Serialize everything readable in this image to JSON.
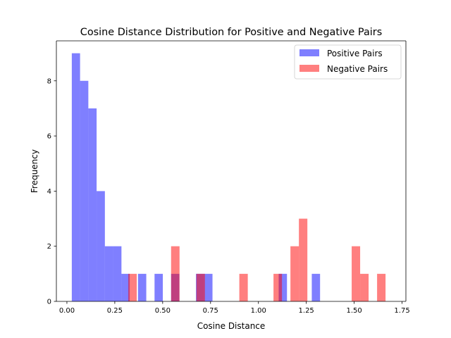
{
  "chart_data": {
    "type": "histogram",
    "title": "Cosine Distance Distribution for Positive and Negative Pairs",
    "xlabel": "Cosine Distance",
    "ylabel": "Frequency",
    "xlim": [
      -0.055,
      1.77
    ],
    "ylim": [
      0,
      9.45
    ],
    "xticks": [
      0.0,
      0.25,
      0.5,
      0.75,
      1.0,
      1.25,
      1.5,
      1.75
    ],
    "xtick_labels": [
      "0.00",
      "0.25",
      "0.50",
      "0.75",
      "1.00",
      "1.25",
      "1.50",
      "1.75"
    ],
    "yticks": [
      0,
      2,
      4,
      6,
      8
    ],
    "ytick_labels": [
      "0",
      "2",
      "4",
      "6",
      "8"
    ],
    "grid": false,
    "legend_position": "top-right",
    "series": [
      {
        "name": "Positive Pairs",
        "color": "#0000ff",
        "opacity": 0.5,
        "bins": [
          {
            "start": 0.0255,
            "end": 0.0687,
            "count": 9
          },
          {
            "start": 0.0687,
            "end": 0.1119,
            "count": 8
          },
          {
            "start": 0.1119,
            "end": 0.1551,
            "count": 7
          },
          {
            "start": 0.1551,
            "end": 0.1983,
            "count": 4
          },
          {
            "start": 0.1983,
            "end": 0.2416,
            "count": 2
          },
          {
            "start": 0.2416,
            "end": 0.2848,
            "count": 2
          },
          {
            "start": 0.2848,
            "end": 0.328,
            "count": 1
          },
          {
            "start": 0.3712,
            "end": 0.4144,
            "count": 1
          },
          {
            "start": 0.4576,
            "end": 0.5008,
            "count": 1
          },
          {
            "start": 0.544,
            "end": 0.5872,
            "count": 1
          },
          {
            "start": 0.6737,
            "end": 0.7169,
            "count": 1
          },
          {
            "start": 0.7169,
            "end": 0.7601,
            "count": 1
          },
          {
            "start": 1.1058,
            "end": 1.149,
            "count": 1
          },
          {
            "start": 1.2786,
            "end": 1.3218,
            "count": 1
          }
        ]
      },
      {
        "name": "Negative Pairs",
        "color": "#ff0000",
        "opacity": 0.5,
        "bins": [
          {
            "start": 0.3205,
            "end": 0.3647,
            "count": 1
          },
          {
            "start": 0.5439,
            "end": 0.5881,
            "count": 2
          },
          {
            "start": 0.6764,
            "end": 0.7206,
            "count": 1
          },
          {
            "start": 0.9002,
            "end": 0.9444,
            "count": 1
          },
          {
            "start": 1.0787,
            "end": 1.1229,
            "count": 1
          },
          {
            "start": 1.1671,
            "end": 1.2113,
            "count": 2
          },
          {
            "start": 1.2113,
            "end": 1.2555,
            "count": 3
          },
          {
            "start": 1.4869,
            "end": 1.5311,
            "count": 2
          },
          {
            "start": 1.5311,
            "end": 1.5753,
            "count": 1
          },
          {
            "start": 1.6195,
            "end": 1.6637,
            "count": 1
          }
        ]
      }
    ]
  }
}
